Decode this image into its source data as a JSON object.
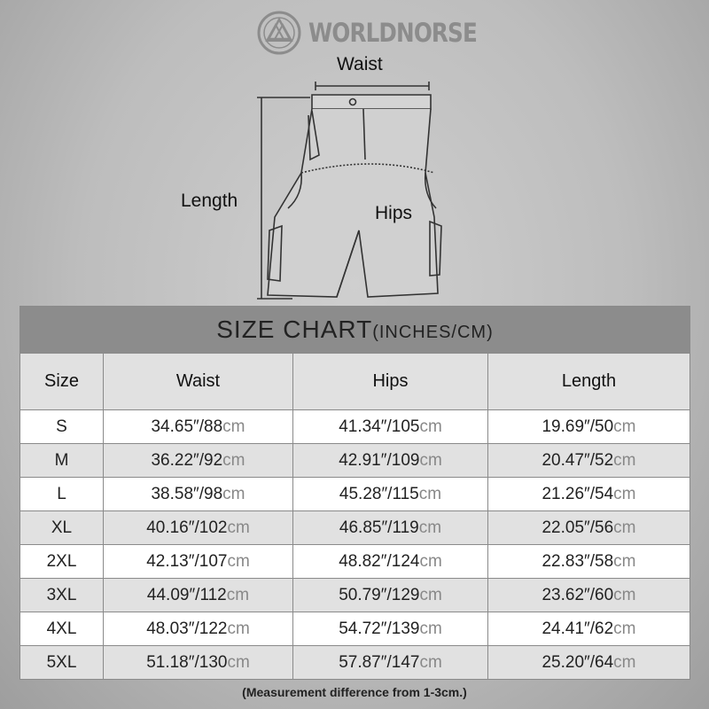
{
  "brand": {
    "name": "WORLDNORSE",
    "logo_icon": "valknut-emblem-icon"
  },
  "diagram": {
    "waist_label": "Waist",
    "length_label": "Length",
    "hips_label": "Hips"
  },
  "table": {
    "title": "SIZE CHART",
    "title_units": "(INCHES/CM)",
    "headers": [
      "Size",
      "Waist",
      "Hips",
      "Length"
    ],
    "unit_cm": "cm",
    "rows": [
      {
        "size": "S",
        "waist": "34.65″/88",
        "hips": "41.34″/105",
        "length": "19.69″/50"
      },
      {
        "size": "M",
        "waist": "36.22″/92",
        "hips": "42.91″/109",
        "length": "20.47″/52"
      },
      {
        "size": "L",
        "waist": "38.58″/98",
        "hips": "45.28″/115",
        "length": "21.26″/54"
      },
      {
        "size": "XL",
        "waist": "40.16″/102",
        "hips": "46.85″/119",
        "length": "22.05″/56"
      },
      {
        "size": "2XL",
        "waist": "42.13″/107",
        "hips": "48.82″/124",
        "length": "22.83″/58"
      },
      {
        "size": "3XL",
        "waist": "44.09″/112",
        "hips": "50.79″/129",
        "length": "23.62″/60"
      },
      {
        "size": "4XL",
        "waist": "48.03″/122",
        "hips": "54.72″/139",
        "length": "24.41″/62"
      },
      {
        "size": "5XL",
        "waist": "51.18″/130",
        "hips": "57.87″/147",
        "length": "25.20″/64"
      }
    ]
  },
  "note": "(Measurement difference from 1-3cm.)"
}
